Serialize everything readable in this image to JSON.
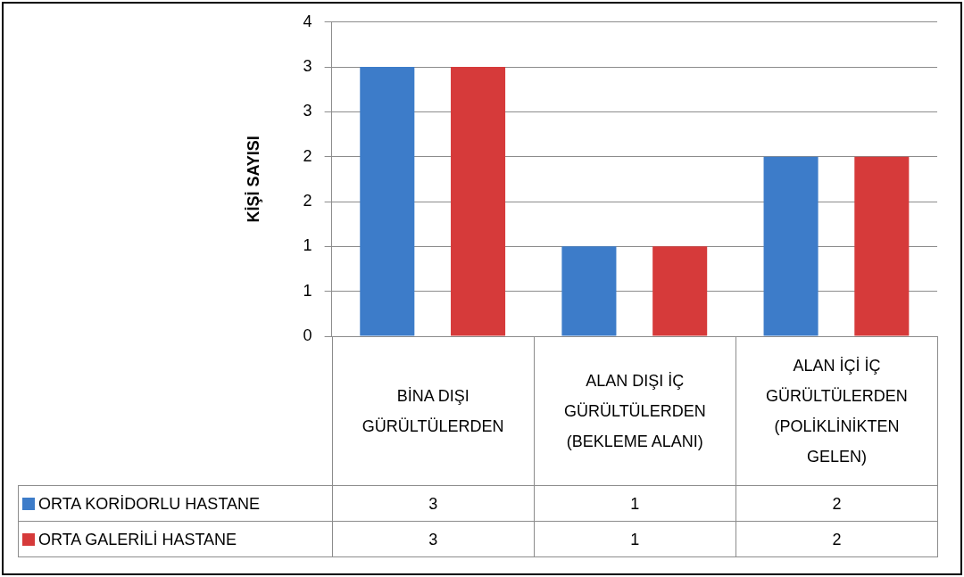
{
  "chart_data": {
    "type": "bar",
    "ylabel": "KİŞİ SAYISI",
    "categories": [
      "BİNA DIŞI GÜRÜLTÜLERDEN",
      "ALAN DIŞI İÇ GÜRÜLTÜLERDEN (BEKLEME ALANI)",
      "ALAN İÇİ İÇ GÜRÜLTÜLERDEN (POLİKLİNİKTEN GELEN)"
    ],
    "series": [
      {
        "name": "ORTA KORİDORLU HASTANE",
        "color": "#3d7cc9",
        "values": [
          3,
          1,
          2
        ]
      },
      {
        "name": "ORTA GALERİLİ HASTANE",
        "color": "#d63a3a",
        "values": [
          3,
          1,
          2
        ]
      }
    ],
    "ylim": [
      0,
      3.5
    ],
    "yticks": [
      0,
      {
        "value": 0.5,
        "label": "1"
      },
      1,
      {
        "value": 1.5,
        "label": "2"
      },
      2,
      {
        "value": 2.5,
        "label": "3"
      },
      3,
      {
        "value": 3.5,
        "label": "4"
      }
    ],
    "grid": "y",
    "legend": "bottom left",
    "data_labels": true
  }
}
